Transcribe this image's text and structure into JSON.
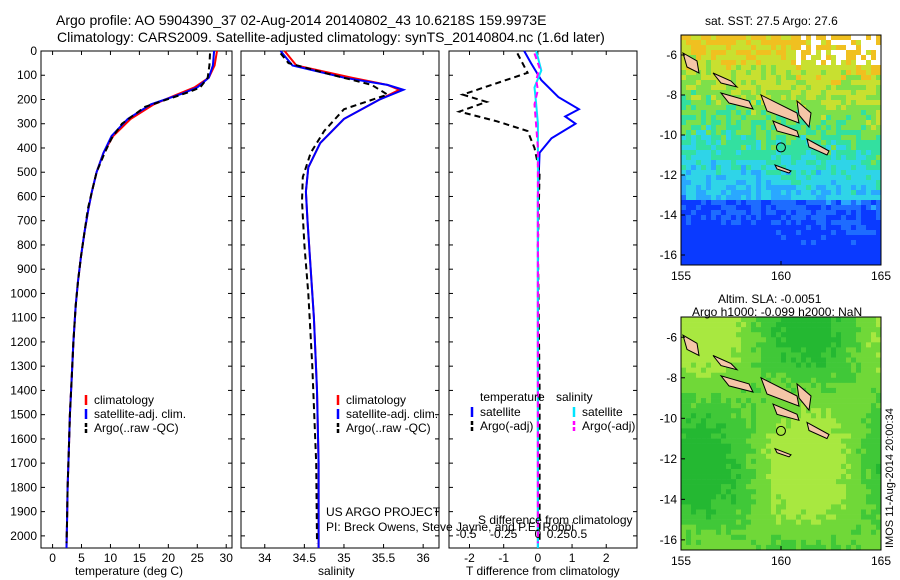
{
  "header": {
    "line1": "Argo profile: AO 5904390_37 02-Aug-2014 20140802_43 10.6218S 159.9973E",
    "line2": "Climatology: CARS2009. Satellite-adjusted climatology: synTS_20140804.nc (1.6d later)"
  },
  "credits": {
    "project": "US ARGO PROJECT",
    "pi": "PI: Breck Owens, Steve Jayne, and P.E. Robbi"
  },
  "footer_stamp": "IMOS 11-Aug-2014 20:00:34",
  "colors": {
    "climatology": "#ff0000",
    "satellite": "#0000ff",
    "argo": "#000000",
    "sat_diff": "#00e5ff",
    "argo_sal_diff": "#ff00ff",
    "land": "#f5c6a8"
  },
  "chart_data": [
    {
      "type": "line",
      "xlabel": "temperature (deg C)",
      "xlim": [
        -2,
        31
      ],
      "xticks": [
        0,
        5,
        10,
        15,
        20,
        25,
        30
      ],
      "ylim": [
        2050,
        0
      ],
      "yticks": [
        0,
        100,
        200,
        300,
        400,
        500,
        600,
        700,
        800,
        900,
        1000,
        1100,
        1200,
        1300,
        1400,
        1500,
        1600,
        1700,
        1800,
        1900,
        2000
      ],
      "legend": [
        "climatology",
        "satellite-adj. clim.",
        "Argo(..raw -QC)"
      ],
      "series": [
        {
          "name": "climatology",
          "style": "solid",
          "color": "#ff0000",
          "x": [
            28.4,
            28.0,
            27.0,
            24.5,
            21.5,
            17.5,
            13.5,
            10.5,
            8.8,
            7.6,
            6.8,
            6.2,
            5.5,
            4.9,
            4.4,
            4.0,
            3.6,
            3.3,
            3.0,
            2.8,
            2.6,
            2.5,
            2.4
          ],
          "y": [
            0,
            60,
            110,
            150,
            180,
            220,
            280,
            350,
            420,
            500,
            580,
            650,
            750,
            850,
            950,
            1050,
            1200,
            1350,
            1500,
            1650,
            1800,
            1950,
            2050
          ]
        },
        {
          "name": "satellite-adj. clim.",
          "style": "solid",
          "color": "#0000ff",
          "x": [
            27.9,
            27.7,
            27.0,
            25.0,
            22.5,
            17.0,
            13.0,
            10.2,
            8.8,
            7.6,
            6.8,
            6.2,
            5.5,
            4.9,
            4.4,
            4.0,
            3.6,
            3.3,
            3.0,
            2.8,
            2.6,
            2.5,
            2.4
          ],
          "y": [
            0,
            60,
            110,
            150,
            175,
            220,
            280,
            350,
            420,
            500,
            580,
            650,
            750,
            850,
            950,
            1050,
            1200,
            1350,
            1500,
            1650,
            1800,
            1950,
            2050
          ]
        },
        {
          "name": "Argo(..raw -QC)",
          "style": "dashed",
          "color": "#000000",
          "x": [
            27.2,
            27.1,
            26.8,
            25.5,
            23.5,
            16.0,
            12.0,
            10.2,
            9.0,
            7.6,
            6.8,
            6.1,
            5.5,
            4.9,
            4.4,
            4.0,
            3.6,
            3.3,
            3.0,
            2.8,
            2.6,
            2.5,
            2.4
          ],
          "y": [
            10,
            60,
            110,
            150,
            170,
            230,
            300,
            360,
            420,
            500,
            580,
            650,
            750,
            850,
            950,
            1050,
            1200,
            1350,
            1500,
            1650,
            1800,
            1950,
            2030
          ]
        }
      ]
    },
    {
      "type": "line",
      "xlabel": "salinity",
      "xlim": [
        33.7,
        36.2
      ],
      "xticks": [
        34,
        34.5,
        35,
        35.5,
        36
      ],
      "ylim": [
        2050,
        0
      ],
      "legend": [
        "climatology",
        "satellite-adj. clim.",
        "Argo(..raw -QC)"
      ],
      "series": [
        {
          "name": "climatology",
          "style": "solid",
          "color": "#ff0000",
          "x": [
            34.25,
            34.4,
            35.1,
            35.55,
            35.7,
            35.45,
            35.0,
            34.7,
            34.55,
            34.52,
            34.54,
            34.58,
            34.62,
            34.66,
            34.68,
            34.68
          ],
          "y": [
            0,
            60,
            110,
            140,
            160,
            200,
            280,
            380,
            480,
            580,
            700,
            900,
            1100,
            1400,
            1700,
            2050
          ]
        },
        {
          "name": "satellite-adj. clim.",
          "style": "solid",
          "color": "#0000ff",
          "x": [
            34.2,
            34.35,
            35.0,
            35.55,
            35.75,
            35.45,
            35.0,
            34.7,
            34.55,
            34.52,
            34.54,
            34.58,
            34.62,
            34.66,
            34.68,
            34.68
          ],
          "y": [
            0,
            60,
            110,
            140,
            160,
            200,
            280,
            380,
            480,
            580,
            700,
            900,
            1100,
            1400,
            1700,
            2050
          ]
        },
        {
          "name": "Argo(..raw -QC)",
          "style": "dashed",
          "color": "#000000",
          "x": [
            34.2,
            34.3,
            34.75,
            35.35,
            35.55,
            35.0,
            34.75,
            34.58,
            34.48,
            34.47,
            34.5,
            34.55,
            34.6,
            34.65,
            34.66
          ],
          "y": [
            10,
            50,
            90,
            140,
            180,
            240,
            330,
            420,
            520,
            620,
            800,
            1000,
            1300,
            1700,
            2030
          ]
        }
      ]
    },
    {
      "type": "line",
      "xlabel": "T difference from climatology",
      "xlim": [
        -2.6,
        2.9
      ],
      "xticks": [
        -2,
        -1,
        0,
        1,
        2
      ],
      "top_xlabel": "S difference from climatology",
      "top_xticks": [
        -0.5,
        -0.25,
        0,
        0.25,
        0.5
      ],
      "ylim": [
        2050,
        0
      ],
      "legend": {
        "col1_title": "temperature",
        "col1": [
          "satellite",
          "Argo(-adj)"
        ],
        "col2_title": "salinity",
        "col2": [
          "satellite",
          "Argo(-adj)"
        ]
      },
      "series": [
        {
          "name": "satellite",
          "quantity": "temperature",
          "style": "solid",
          "color": "#0000ff",
          "x": [
            -0.4,
            -0.2,
            0.1,
            0.6,
            1.2,
            0.8,
            1.1,
            0.4,
            0.05,
            0,
            0
          ],
          "y": [
            0,
            50,
            120,
            190,
            240,
            270,
            300,
            360,
            420,
            600,
            2050
          ]
        },
        {
          "name": "Argo(-adj)",
          "quantity": "temperature",
          "style": "dashed",
          "color": "#000000",
          "x": [
            -0.6,
            -0.3,
            -2.2,
            -1.5,
            -2.3,
            -1.2,
            -0.3,
            -0.1,
            0.05,
            0,
            0.05,
            0.05
          ],
          "y": [
            10,
            90,
            180,
            210,
            250,
            290,
            330,
            400,
            500,
            800,
            1400,
            2030
          ]
        },
        {
          "name": "satellite",
          "quantity": "salinity",
          "style": "solid",
          "color": "#00e5ff",
          "x": [
            -0.05,
            0.1,
            -0.1,
            -0.05,
            0,
            0,
            0
          ],
          "y": [
            0,
            80,
            150,
            220,
            300,
            500,
            2050
          ]
        },
        {
          "name": "Argo(-adj)",
          "quantity": "salinity",
          "style": "dashed",
          "color": "#ff00ff",
          "x": [
            -0.1,
            0.05,
            -0.05,
            0,
            -0.1,
            0,
            0
          ],
          "y": [
            10,
            70,
            120,
            160,
            220,
            400,
            2030
          ]
        }
      ]
    },
    {
      "type": "heatmap",
      "title": "sat. SST: 27.5 Argo: 27.6",
      "xlim": [
        155,
        165
      ],
      "ylim": [
        -16.5,
        -5
      ],
      "xticks": [
        155,
        160,
        165
      ],
      "yticks": [
        -6,
        -8,
        -10,
        -12,
        -14,
        -16
      ],
      "marker": {
        "lon": 159.9973,
        "lat": -10.6218
      }
    },
    {
      "type": "heatmap",
      "title": "Altim. SLA: -0.0051",
      "subtitle": "Argo h1000: -0.099 h2000: NaN",
      "xlim": [
        155,
        165
      ],
      "ylim": [
        -16.5,
        -5
      ],
      "xticks": [
        155,
        160,
        165
      ],
      "yticks": [
        -6,
        -8,
        -10,
        -12,
        -14,
        -16
      ],
      "marker": {
        "lon": 159.9973,
        "lat": -10.6218
      }
    }
  ]
}
